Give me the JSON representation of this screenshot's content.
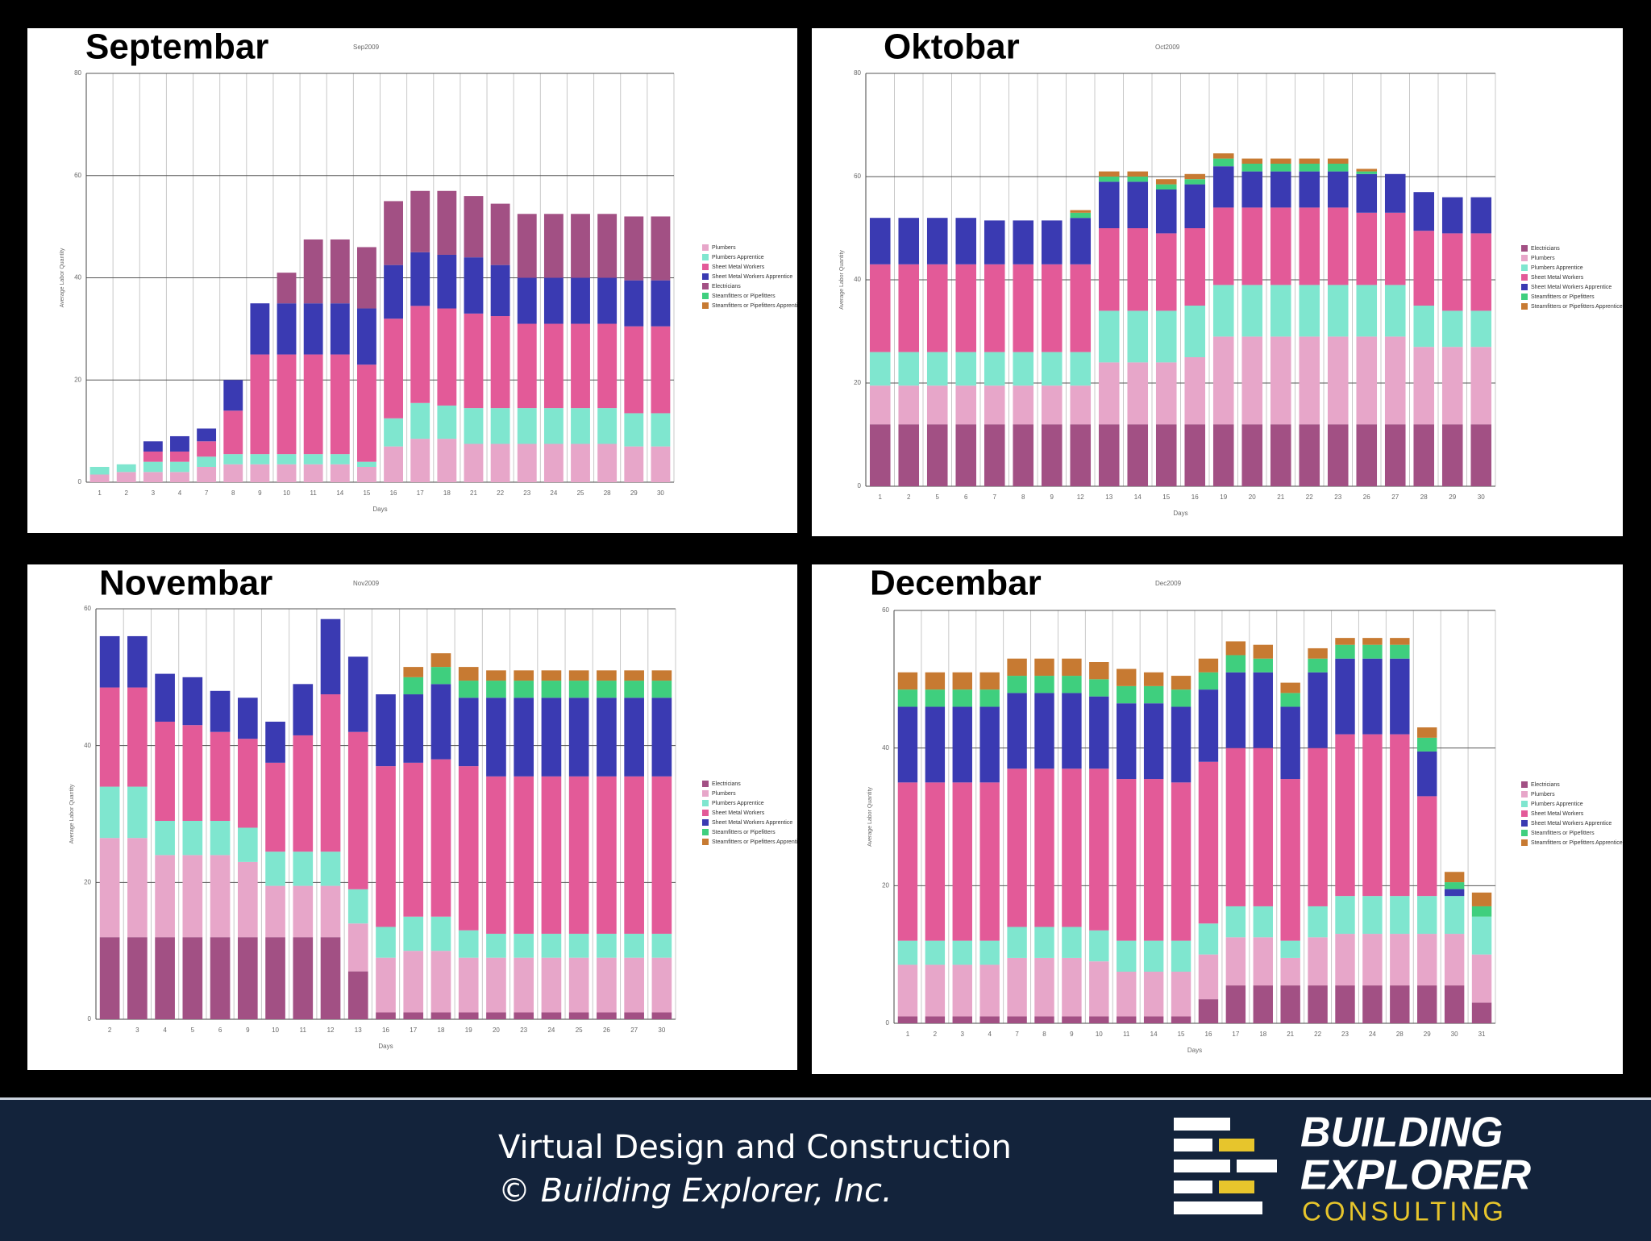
{
  "chart_data": [
    {
      "type": "bar",
      "stacked": true,
      "title": "Septembar",
      "subtitle": "Sep2009",
      "x_label": "Days",
      "y_label": "Average Labor Quantity",
      "categories": [
        "1",
        "2",
        "3",
        "4",
        "7",
        "8",
        "9",
        "10",
        "11",
        "14",
        "15",
        "16",
        "17",
        "18",
        "21",
        "22",
        "23",
        "24",
        "25",
        "28",
        "29",
        "30"
      ],
      "ylim": [
        0,
        80
      ],
      "yticks": [
        0,
        20,
        40,
        60,
        80
      ],
      "grid": true,
      "series": [
        {
          "name": "Plumbers",
          "color": "#e7a6c9",
          "values": [
            1.5,
            2,
            2,
            2,
            3,
            3.5,
            3.5,
            3.5,
            3.5,
            3.5,
            3,
            7,
            8.5,
            8.5,
            7.5,
            7.5,
            7.5,
            7.5,
            7.5,
            7.5,
            7,
            7
          ]
        },
        {
          "name": "Plumbers Apprentice",
          "color": "#7fe6cf",
          "values": [
            1.5,
            1.5,
            2,
            2,
            2,
            2,
            2,
            2,
            2,
            2,
            1,
            5.5,
            7,
            6.5,
            7,
            7,
            7,
            7,
            7,
            7,
            6.5,
            6.5
          ]
        },
        {
          "name": "Sheet Metal Workers",
          "color": "#e35a98",
          "values": [
            0,
            0,
            2,
            2,
            3,
            8.5,
            19.5,
            19.5,
            19.5,
            19.5,
            19,
            19.5,
            19,
            19,
            18.5,
            18,
            16.5,
            16.5,
            16.5,
            16.5,
            17,
            17
          ]
        },
        {
          "name": "Sheet Metal Workers Apprentice",
          "color": "#3a3ab2",
          "values": [
            0,
            0,
            2,
            3,
            2.5,
            6,
            10,
            10,
            10,
            10,
            11,
            10.5,
            10.5,
            10.5,
            11,
            10,
            9,
            9,
            9,
            9,
            9,
            9
          ]
        },
        {
          "name": "Electricians",
          "color": "#a25084",
          "values": [
            0,
            0,
            0,
            0,
            0,
            0,
            0,
            6,
            12.5,
            12.5,
            12,
            12.5,
            12,
            12.5,
            12,
            12,
            12.5,
            12.5,
            12.5,
            12.5,
            12.5,
            12.5
          ]
        },
        {
          "name": "Steamfitters or Pipefitters",
          "color": "#3fcf7e",
          "values": [
            0,
            0,
            0,
            0,
            0,
            0,
            0,
            0,
            0,
            0,
            0,
            0,
            0,
            0,
            0,
            0,
            0,
            0,
            0,
            0,
            0,
            0
          ]
        },
        {
          "name": "Steamfitters or Pipefitters Apprentice",
          "color": "#c77a32",
          "values": [
            0,
            0,
            0,
            0,
            0,
            0,
            0,
            0,
            0,
            0,
            0,
            0,
            0,
            0,
            0,
            0,
            0,
            0,
            0,
            0,
            0,
            0
          ]
        }
      ]
    },
    {
      "type": "bar",
      "stacked": true,
      "title": "Oktobar",
      "subtitle": "Oct2009",
      "x_label": "Days",
      "y_label": "Average Labor Quantity",
      "categories": [
        "1",
        "2",
        "5",
        "6",
        "7",
        "8",
        "9",
        "12",
        "13",
        "14",
        "15",
        "16",
        "19",
        "20",
        "21",
        "22",
        "23",
        "26",
        "27",
        "28",
        "29",
        "30"
      ],
      "ylim": [
        0,
        80
      ],
      "yticks": [
        0,
        20,
        40,
        60,
        80
      ],
      "grid": true,
      "series": [
        {
          "name": "Electricians",
          "color": "#a25084",
          "values": [
            12,
            12,
            12,
            12,
            12,
            12,
            12,
            12,
            12,
            12,
            12,
            12,
            12,
            12,
            12,
            12,
            12,
            12,
            12,
            12,
            12,
            12
          ]
        },
        {
          "name": "Plumbers",
          "color": "#e7a6c9",
          "values": [
            7.5,
            7.5,
            7.5,
            7.5,
            7.5,
            7.5,
            7.5,
            7.5,
            12,
            12,
            12,
            13,
            17,
            17,
            17,
            17,
            17,
            17,
            17,
            15,
            15,
            15
          ]
        },
        {
          "name": "Plumbers Apprentice",
          "color": "#7fe6cf",
          "values": [
            6.5,
            6.5,
            6.5,
            6.5,
            6.5,
            6.5,
            6.5,
            6.5,
            10,
            10,
            10,
            10,
            10,
            10,
            10,
            10,
            10,
            10,
            10,
            8,
            7,
            7
          ]
        },
        {
          "name": "Sheet Metal Workers",
          "color": "#e35a98",
          "values": [
            17,
            17,
            17,
            17,
            17,
            17,
            17,
            17,
            16,
            16,
            15,
            15,
            15,
            15,
            15,
            15,
            15,
            14,
            14,
            14.5,
            15,
            15
          ]
        },
        {
          "name": "Sheet Metal Workers Apprentice",
          "color": "#3a3ab2",
          "values": [
            9,
            9,
            9,
            9,
            8.5,
            8.5,
            8.5,
            9,
            9,
            9,
            8.5,
            8.5,
            8,
            7,
            7,
            7,
            7,
            7.5,
            7.5,
            7.5,
            7,
            7
          ]
        },
        {
          "name": "Steamfitters or Pipefitters",
          "color": "#3fcf7e",
          "values": [
            0,
            0,
            0,
            0,
            0,
            0,
            0,
            1,
            1,
            1,
            1,
            1,
            1.5,
            1.5,
            1.5,
            1.5,
            1.5,
            0.5,
            0,
            0,
            0,
            0
          ]
        },
        {
          "name": "Steamfitters or Pipefitters Apprentice",
          "color": "#c77a32",
          "values": [
            0,
            0,
            0,
            0,
            0,
            0,
            0,
            0.5,
            1,
            1,
            1,
            1,
            1,
            1,
            1,
            1,
            1,
            0.5,
            0,
            0,
            0,
            0
          ]
        }
      ]
    },
    {
      "type": "bar",
      "stacked": true,
      "title": "Novembar",
      "subtitle": "Nov2009",
      "x_label": "Days",
      "y_label": "Average Labor Quantity",
      "categories": [
        "2",
        "3",
        "4",
        "5",
        "6",
        "9",
        "10",
        "11",
        "12",
        "13",
        "16",
        "17",
        "18",
        "19",
        "20",
        "23",
        "24",
        "25",
        "26",
        "27",
        "30"
      ],
      "ylim": [
        0,
        60
      ],
      "yticks": [
        0,
        20,
        40,
        60
      ],
      "grid": true,
      "series": [
        {
          "name": "Electricians",
          "color": "#a25084",
          "values": [
            12,
            12,
            12,
            12,
            12,
            12,
            12,
            12,
            12,
            7,
            1,
            1,
            1,
            1,
            1,
            1,
            1,
            1,
            1,
            1,
            1
          ]
        },
        {
          "name": "Plumbers",
          "color": "#e7a6c9",
          "values": [
            14.5,
            14.5,
            12,
            12,
            12,
            11,
            7.5,
            7.5,
            7.5,
            7,
            8,
            9,
            9,
            8,
            8,
            8,
            8,
            8,
            8,
            8,
            8
          ]
        },
        {
          "name": "Plumbers Apprentice",
          "color": "#7fe6cf",
          "values": [
            7.5,
            7.5,
            5,
            5,
            5,
            5,
            5,
            5,
            5,
            5,
            4.5,
            5,
            5,
            4,
            3.5,
            3.5,
            3.5,
            3.5,
            3.5,
            3.5,
            3.5
          ]
        },
        {
          "name": "Sheet Metal Workers",
          "color": "#e35a98",
          "values": [
            14.5,
            14.5,
            14.5,
            14,
            13,
            13,
            13,
            17,
            23,
            23,
            23.5,
            22.5,
            23,
            24,
            23,
            23,
            23,
            23,
            23,
            23,
            23
          ]
        },
        {
          "name": "Sheet Metal Workers Apprentice",
          "color": "#3a3ab2",
          "values": [
            7.5,
            7.5,
            7,
            7,
            6,
            6,
            6,
            7.5,
            11,
            11,
            10.5,
            10,
            11,
            10,
            11.5,
            11.5,
            11.5,
            11.5,
            11.5,
            11.5,
            11.5
          ]
        },
        {
          "name": "Steamfitters or Pipefitters",
          "color": "#3fcf7e",
          "values": [
            0,
            0,
            0,
            0,
            0,
            0,
            0,
            0,
            0,
            0,
            0,
            2.5,
            2.5,
            2.5,
            2.5,
            2.5,
            2.5,
            2.5,
            2.5,
            2.5,
            2.5
          ]
        },
        {
          "name": "Steamfitters or Pipefitters Apprentice",
          "color": "#c77a32",
          "values": [
            0,
            0,
            0,
            0,
            0,
            0,
            0,
            0,
            0,
            0,
            0,
            1.5,
            2,
            2,
            1.5,
            1.5,
            1.5,
            1.5,
            1.5,
            1.5,
            1.5
          ]
        }
      ]
    },
    {
      "type": "bar",
      "stacked": true,
      "title": "Decembar",
      "subtitle": "Dec2009",
      "x_label": "Days",
      "y_label": "Average Labor Quantity",
      "categories": [
        "1",
        "2",
        "3",
        "4",
        "7",
        "8",
        "9",
        "10",
        "11",
        "14",
        "15",
        "16",
        "17",
        "18",
        "21",
        "22",
        "23",
        "24",
        "28",
        "29",
        "30",
        "31"
      ],
      "ylim": [
        0,
        60
      ],
      "yticks": [
        0,
        20,
        40,
        60
      ],
      "grid": true,
      "series": [
        {
          "name": "Electricians",
          "color": "#a25084",
          "values": [
            1,
            1,
            1,
            1,
            1,
            1,
            1,
            1,
            1,
            1,
            1,
            3.5,
            5.5,
            5.5,
            5.5,
            5.5,
            5.5,
            5.5,
            5.5,
            5.5,
            5.5,
            3
          ]
        },
        {
          "name": "Plumbers",
          "color": "#e7a6c9",
          "values": [
            7.5,
            7.5,
            7.5,
            7.5,
            8.5,
            8.5,
            8.5,
            8,
            6.5,
            6.5,
            6.5,
            6.5,
            7,
            7,
            4,
            7,
            7.5,
            7.5,
            7.5,
            7.5,
            7.5,
            7
          ]
        },
        {
          "name": "Plumbers Apprentice",
          "color": "#7fe6cf",
          "values": [
            3.5,
            3.5,
            3.5,
            3.5,
            4.5,
            4.5,
            4.5,
            4.5,
            4.5,
            4.5,
            4.5,
            4.5,
            4.5,
            4.5,
            2.5,
            4.5,
            5.5,
            5.5,
            5.5,
            5.5,
            5.5,
            5.5
          ]
        },
        {
          "name": "Sheet Metal Workers",
          "color": "#e35a98",
          "values": [
            23,
            23,
            23,
            23,
            23,
            23,
            23,
            23.5,
            23.5,
            23.5,
            23,
            23.5,
            23,
            23,
            23.5,
            23,
            23.5,
            23.5,
            23.5,
            14.5,
            0,
            0
          ]
        },
        {
          "name": "Sheet Metal Workers Apprentice",
          "color": "#3a3ab2",
          "values": [
            11,
            11,
            11,
            11,
            11,
            11,
            11,
            10.5,
            11,
            11,
            11,
            10.5,
            11,
            11,
            10.5,
            11,
            11,
            11,
            11,
            6.5,
            1,
            0
          ]
        },
        {
          "name": "Steamfitters or Pipefitters",
          "color": "#3fcf7e",
          "values": [
            2.5,
            2.5,
            2.5,
            2.5,
            2.5,
            2.5,
            2.5,
            2.5,
            2.5,
            2.5,
            2.5,
            2.5,
            2.5,
            2,
            2,
            2,
            2,
            2,
            2,
            2,
            1,
            1.5
          ]
        },
        {
          "name": "Steamfitters or Pipefitters Apprentice",
          "color": "#c77a32",
          "values": [
            2.5,
            2.5,
            2.5,
            2.5,
            2.5,
            2.5,
            2.5,
            2.5,
            2.5,
            2,
            2,
            2,
            2,
            2,
            1.5,
            1.5,
            1,
            1,
            1,
            1.5,
            1.5,
            2
          ]
        }
      ]
    }
  ],
  "footer": {
    "line1": "Virtual Design and Construction",
    "line2": "© Building Explorer, Inc.",
    "logo": [
      "BUILDING",
      "EXPLORER",
      "CONSULTING"
    ]
  }
}
